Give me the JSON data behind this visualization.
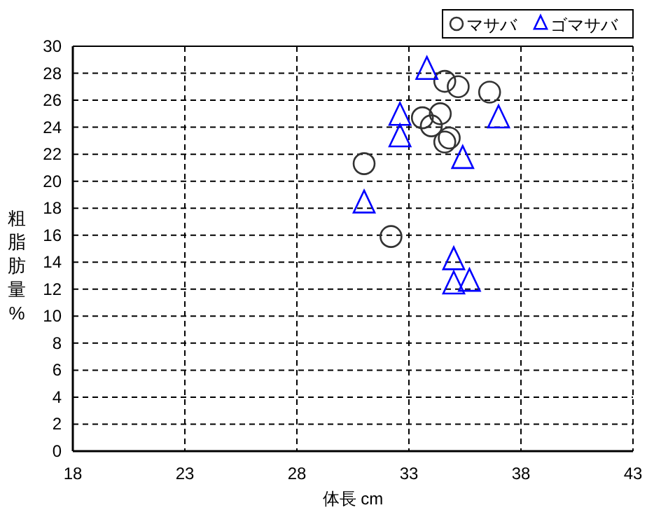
{
  "chart_data": {
    "type": "scatter",
    "xlabel": "体長 cm",
    "ylabel": "粗脂肪量%",
    "xlim": [
      18,
      43
    ],
    "xticks": [
      18,
      23,
      28,
      33,
      38,
      43
    ],
    "ylim": [
      0,
      30
    ],
    "yticks": [
      0,
      2,
      4,
      6,
      8,
      10,
      12,
      14,
      16,
      18,
      20,
      22,
      24,
      26,
      28,
      30
    ],
    "grid": true,
    "legend": "top right",
    "series": [
      {
        "name": "マサバ",
        "color": "#333333",
        "marker": "circle",
        "x": [
          34.6,
          35.2,
          36.6,
          33.6,
          34.4,
          34.0,
          34.6,
          34.8,
          31.0,
          32.2
        ],
        "values": [
          27.4,
          27.0,
          26.6,
          24.7,
          25.0,
          24.1,
          22.9,
          23.2,
          21.3,
          15.9
        ]
      },
      {
        "name": "ゴマサバ",
        "color": "#0000ff",
        "marker": "triangle",
        "x": [
          33.8,
          32.6,
          37.0,
          32.6,
          35.4,
          31.0,
          35.0,
          35.0,
          35.7
        ],
        "values": [
          28.2,
          24.8,
          24.6,
          23.2,
          21.6,
          18.3,
          14.1,
          12.3,
          12.5
        ]
      }
    ]
  }
}
